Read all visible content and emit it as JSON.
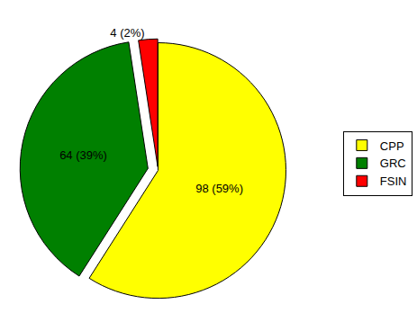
{
  "chart_data": {
    "type": "pie",
    "categories": [
      "CPP",
      "GRC",
      "FSIN"
    ],
    "values": [
      98,
      64,
      4
    ],
    "value_labels": [
      "98 (59%)",
      "64 (39%)",
      "4 (2%)"
    ],
    "colors": [
      "#ffff00",
      "#008000",
      "#ff0000"
    ],
    "data_labels": true,
    "legend": "right"
  }
}
